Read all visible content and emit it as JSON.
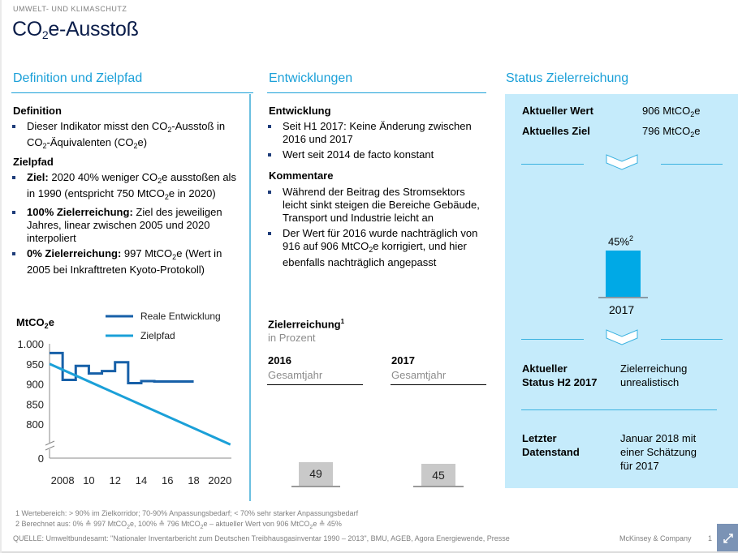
{
  "header": {
    "kicker": "UMWELT- UND KLIMASCHUTZ",
    "title_prefix": "CO",
    "title_sub": "2",
    "title_suffix": "e-Ausstoß"
  },
  "sections": {
    "definition": {
      "heading": "Definition und Zielpfad",
      "def_title": "Definition",
      "def_bullet": {
        "p1": "Dieser Indikator  misst den CO",
        "s1": "2",
        "p2": "-Ausstoß in CO",
        "s2": "2",
        "p3": "-Äquivalenten  (CO",
        "s3": "2",
        "p4": "e)"
      },
      "ziel_title": "Zielpfad",
      "bullets": [
        {
          "bold": "Ziel:",
          "p1": " 2020 40% weniger CO",
          "s1": "2",
          "p2": "e ausstoßen als in 1990 (entspricht 750 MtCO",
          "s2": "2",
          "p3": "e in 2020)"
        },
        {
          "bold": "100% Zielerreichung:",
          "text": " Ziel des jeweiligen Jahres, linear zwischen 2005 und 2020 interpoliert"
        },
        {
          "bold": "0% Zielerreichung:",
          "p1": " 997 MtCO",
          "s1": "2",
          "p2": "e (Wert in 2005 bei Inkrafttreten Kyoto-Protokoll)"
        }
      ]
    },
    "entwicklungen": {
      "heading": "Entwicklungen",
      "dev_title": "Entwicklung",
      "dev_bullets": [
        "Seit H1 2017: Keine Änderung zwischen 2016 und 2017",
        "Wert seit 2014 de facto konstant"
      ],
      "comm_title": "Kommentare",
      "comm_bullet1": "Während der Beitrag des Stromsektors leicht sinkt steigen die Bereiche Gebäude, Transport und Industrie leicht an",
      "comm_bullet2": {
        "p1": "Der Wert für 2016 wurde nachträglich von 916 auf 906 MtCO",
        "s1": "2",
        "p2": "e korrigiert, und hier ebenfalls nachträglich angepasst"
      },
      "ziel_title": "Zielerreichung",
      "ziel_sup": "1",
      "ziel_unit": "in Prozent",
      "years": [
        {
          "year": "2016",
          "period": "Gesamtjahr",
          "value": 49
        },
        {
          "year": "2017",
          "period": "Gesamtjahr",
          "value": 45
        }
      ]
    },
    "status": {
      "heading": "Status Zielerreichung",
      "current_value_label": "Aktueller Wert",
      "current_value": {
        "p1": "906 MtCO",
        "s1": "2",
        "p2": "e"
      },
      "current_target_label": "Aktuelles Ziel",
      "current_target": {
        "p1": "796 MtCO",
        "s1": "2",
        "p2": "e"
      },
      "bar_value_pct": 45,
      "bar_label": "45%",
      "bar_sup": "2",
      "bar_year": "2017",
      "status_label_1": "Aktueller",
      "status_label_2": "Status H2 2017",
      "status_value_1": "Zielerreichung",
      "status_value_2": "unrealistisch",
      "data_label_1": "Letzter",
      "data_label_2": "Datenstand",
      "data_value_1": "Januar 2018 mit",
      "data_value_2": "einer Schätzung",
      "data_value_3": "für 2017"
    }
  },
  "chart_data": {
    "type": "line",
    "ylabel": {
      "p1": "MtCO",
      "s1": "2",
      "p2": "e"
    },
    "yticks": [
      1000,
      950,
      900,
      850,
      800,
      0
    ],
    "ytick_labels": [
      "1.000",
      "950",
      "900",
      "850",
      "800",
      "0"
    ],
    "xtick_labels": [
      "2008",
      "10",
      "12",
      "14",
      "16",
      "18",
      "2020"
    ],
    "xticks": [
      2008,
      2010,
      2012,
      2014,
      2016,
      2018,
      2020
    ],
    "xlim": [
      2007,
      2021
    ],
    "ylim_broken": [
      750,
      1000
    ],
    "axis_break": true,
    "legend": [
      "Reale Entwicklung",
      "Zielpfad"
    ],
    "legend_position": "top-right",
    "series": [
      {
        "name": "Reale Entwicklung",
        "color": "#1760a8",
        "step": true,
        "x": [
          2007,
          2008,
          2009,
          2010,
          2011,
          2012,
          2013,
          2014,
          2015,
          2016,
          2017,
          2018
        ],
        "values": [
          977,
          910,
          945,
          926,
          932,
          954,
          902,
          907,
          906,
          906,
          906,
          906
        ]
      },
      {
        "name": "Zielpfad",
        "color": "#1ba0d8",
        "x": [
          2007,
          2020.8
        ],
        "values": [
          950,
          749
        ]
      }
    ]
  },
  "footer": {
    "note1": "1 Wertebereich: > 90% im Zielkorridor; 70-90% Anpassungsbedarf; < 70% sehr starker Anpassungsbedarf",
    "note2": {
      "p1": "2  Berechnet aus: 0% ≙ 997 MtCO",
      "s1": "2",
      "p2": "e,  100% ≙ 796 MtCO",
      "s2": "2",
      "p3": "e  – aktueller Wert von 906 MtCO",
      "s3": "2",
      "p4": "e  ≙ 45%"
    },
    "source": "QUELLE:  Umweltbundesamt: \"Nationaler Inventarbericht zum Deutschen Treibhausgasinventar 1990 – 2013\", BMU,  AGEB,  Agora Energiewende, Presse",
    "company": "McKinsey & Company",
    "page": "1",
    "expand_icon": "expand-icon"
  }
}
